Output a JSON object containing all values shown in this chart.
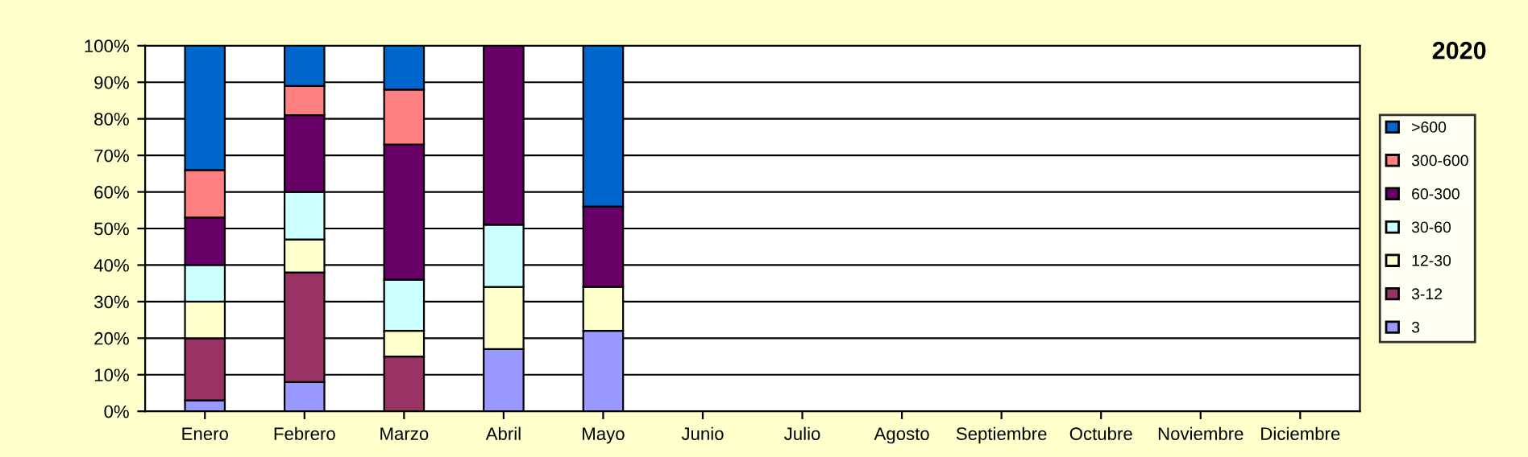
{
  "chart_data": {
    "type": "bar",
    "title": "2020",
    "stacked": true,
    "grid": "y",
    "legend": "right",
    "categories": [
      "Enero",
      "Febrero",
      "Marzo",
      "Abril",
      "Mayo",
      "Junio",
      "Julio",
      "Agosto",
      "Septiembre",
      "Octubre",
      "Noviembre",
      "Diciembre"
    ],
    "ylim": [
      0,
      100
    ],
    "yticks": [
      {
        "value": 0,
        "label": "0%"
      },
      {
        "value": 10,
        "label": "10%"
      },
      {
        "value": 20,
        "label": "20%"
      },
      {
        "value": 30,
        "label": "30%"
      },
      {
        "value": 40,
        "label": "40%"
      },
      {
        "value": 50,
        "label": "50%"
      },
      {
        "value": 60,
        "label": "60%"
      },
      {
        "value": 70,
        "label": "70%"
      },
      {
        "value": 80,
        "label": "80%"
      },
      {
        "value": 90,
        "label": "90%"
      },
      {
        "value": 100,
        "label": "100%"
      }
    ],
    "series": [
      {
        "name": "3",
        "color": "#9999ff",
        "values": [
          3,
          8,
          0,
          17,
          22,
          0,
          0,
          0,
          0,
          0,
          0,
          0
        ]
      },
      {
        "name": "3-12",
        "color": "#993366",
        "values": [
          17,
          30,
          15,
          0,
          0,
          0,
          0,
          0,
          0,
          0,
          0,
          0
        ]
      },
      {
        "name": "12-30",
        "color": "#ffffcc",
        "values": [
          10,
          9,
          7,
          17,
          12,
          0,
          0,
          0,
          0,
          0,
          0,
          0
        ]
      },
      {
        "name": "30-60",
        "color": "#ccffff",
        "values": [
          10,
          13,
          14,
          17,
          0,
          0,
          0,
          0,
          0,
          0,
          0,
          0
        ]
      },
      {
        "name": "60-300",
        "color": "#660066",
        "values": [
          13,
          21,
          37,
          49,
          22,
          0,
          0,
          0,
          0,
          0,
          0,
          0
        ]
      },
      {
        "name": "300-600",
        "color": "#ff8080",
        "values": [
          13,
          8,
          15,
          0,
          0,
          0,
          0,
          0,
          0,
          0,
          0,
          0
        ]
      },
      {
        "name": ">600",
        "color": "#0066cc",
        "values": [
          34,
          11,
          12,
          0,
          44,
          0,
          0,
          0,
          0,
          0,
          0,
          0
        ]
      }
    ]
  }
}
